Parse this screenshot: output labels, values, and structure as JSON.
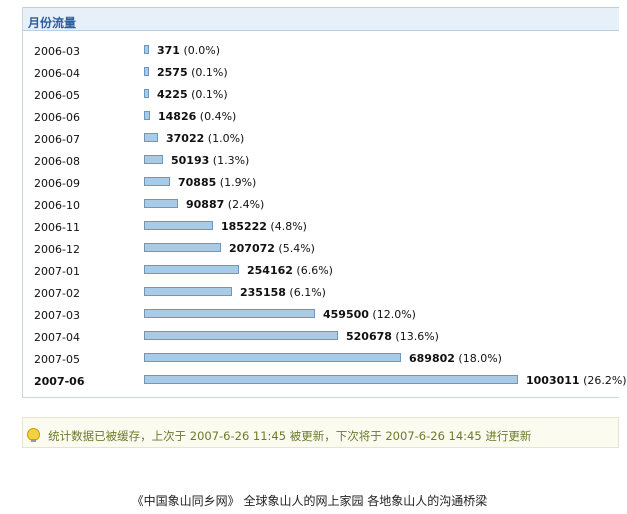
{
  "panel": {
    "title": "月份流量"
  },
  "chart_data": {
    "type": "bar",
    "orientation": "horizontal",
    "title": "月份流量",
    "categories": [
      "2006-03",
      "2006-04",
      "2006-05",
      "2006-06",
      "2006-07",
      "2006-08",
      "2006-09",
      "2006-10",
      "2006-11",
      "2006-12",
      "2007-01",
      "2007-02",
      "2007-03",
      "2007-04",
      "2007-05",
      "2007-06"
    ],
    "values": [
      371,
      2575,
      4225,
      14826,
      37022,
      50193,
      70885,
      90887,
      185222,
      207072,
      254162,
      235158,
      459500,
      520678,
      689802,
      1003011
    ],
    "percents": [
      "(0.0%)",
      "(0.1%)",
      "(0.1%)",
      "(0.4%)",
      "(1.0%)",
      "(1.3%)",
      "(1.9%)",
      "(2.4%)",
      "(4.8%)",
      "(5.4%)",
      "(6.6%)",
      "(6.1%)",
      "(12.0%)",
      "(13.6%)",
      "(18.0%)",
      "(26.2%)"
    ],
    "highlighted_category": "2007-06",
    "grid": false,
    "legend": "none"
  },
  "notice": {
    "icon": "lightbulb-icon",
    "text": "统计数据已被缓存，上次于 2007-6-26 11:45 被更新，下次将于 2007-6-26 14:45 进行更新"
  },
  "footer": {
    "text": "《中国象山同乡网》  全球象山人的网上家园 各地象山人的沟通桥梁"
  },
  "colors": {
    "bar_fill": "#a9cbe6",
    "bar_border": "#6e97bf",
    "header_bg": "#e7f0f8",
    "title": "#2f5c9c",
    "notice_text": "#6b7b2a"
  }
}
